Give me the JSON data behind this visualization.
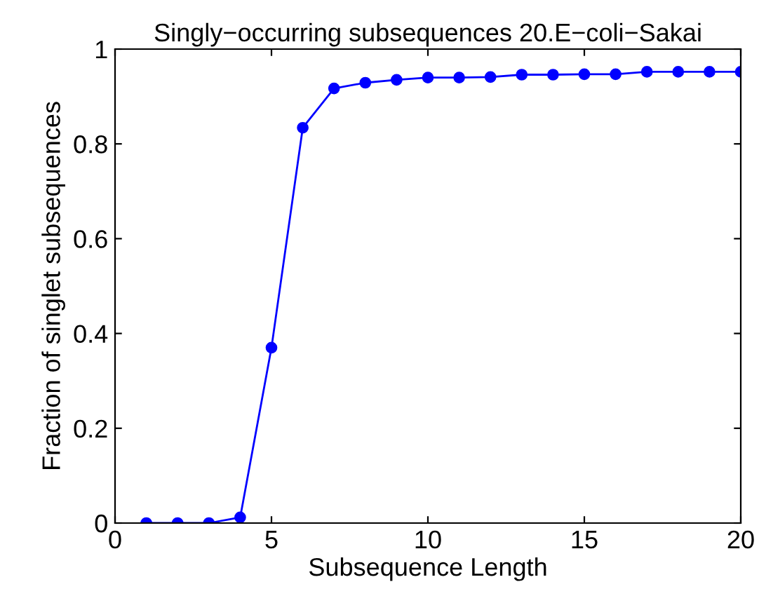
{
  "chart_data": {
    "type": "line",
    "title": "Singly−occurring subsequences 20.E−coli−Sakai",
    "xlabel": "Subsequence Length",
    "ylabel": "Fraction of singlet subsequences",
    "x": [
      1,
      2,
      3,
      4,
      5,
      6,
      7,
      8,
      9,
      10,
      11,
      12,
      13,
      14,
      15,
      16,
      17,
      18,
      19,
      20
    ],
    "series": [
      {
        "color": "#0000ff",
        "values": [
          0,
          0,
          0,
          0.012,
          0.37,
          0.834,
          0.917,
          0.929,
          0.935,
          0.94,
          0.94,
          0.941,
          0.946,
          0.946,
          0.947,
          0.947,
          0.952,
          0.952,
          0.952,
          0.952
        ]
      }
    ],
    "xlim": [
      0,
      20
    ],
    "ylim": [
      0,
      1
    ],
    "xticks": [
      0,
      5,
      10,
      15,
      20
    ],
    "yticks": [
      0,
      0.2,
      0.4,
      0.6,
      0.8,
      1
    ],
    "grid": false,
    "marker": "circle",
    "line_style": "solid",
    "legend": false
  }
}
